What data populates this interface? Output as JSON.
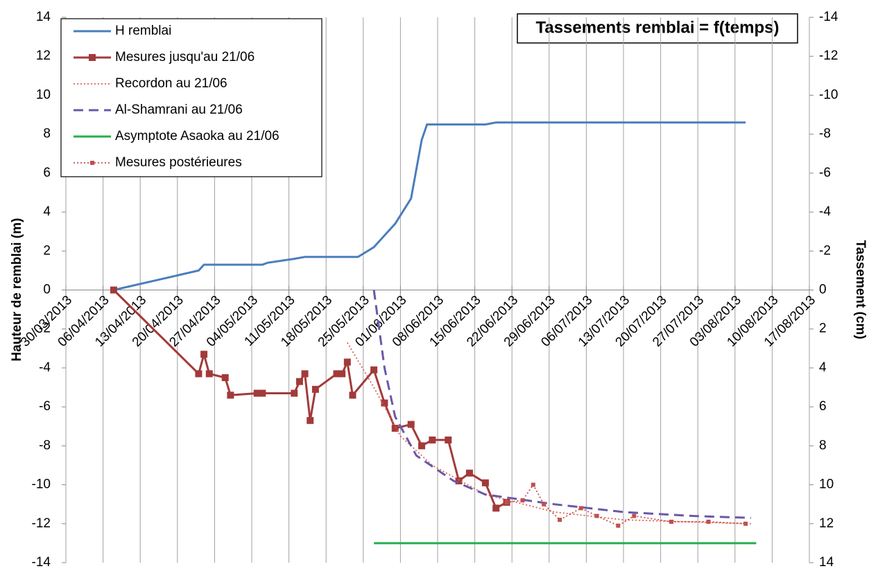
{
  "chart_data": {
    "type": "line",
    "title": "Tassements remblai = f(temps)",
    "ylabel": "Hauteur de remblai (m)",
    "y2label": "Tassement (cm)",
    "xlim": [
      "30/03/2013",
      "17/08/2013"
    ],
    "xticks": [
      "30/03/2013",
      "06/04/2013",
      "13/04/2013",
      "20/04/2013",
      "27/04/2013",
      "04/05/2013",
      "11/05/2013",
      "18/05/2013",
      "25/05/2013",
      "01/06/2013",
      "08/06/2013",
      "15/06/2013",
      "22/06/2013",
      "29/06/2013",
      "06/07/2013",
      "13/07/2013",
      "20/07/2013",
      "27/07/2013",
      "03/08/2013",
      "10/08/2013",
      "17/08/2013"
    ],
    "ylim": [
      -14,
      14
    ],
    "yticks": [
      -14,
      -12,
      -10,
      -8,
      -6,
      -4,
      -2,
      0,
      2,
      4,
      6,
      8,
      10,
      12,
      14
    ],
    "y2lim": [
      14,
      -14
    ],
    "y2ticks": [
      14,
      12,
      10,
      8,
      6,
      4,
      2,
      0,
      -2,
      -4,
      -6,
      -8,
      -10,
      -12,
      -14
    ],
    "grid": "x",
    "legend": "upper left",
    "series": [
      {
        "name": "H remblai",
        "color": "#4a7ebb",
        "style": "solid",
        "axis": "y",
        "x": [
          "08/04/2013",
          "24/04/2013",
          "25/04/2013",
          "06/05/2013",
          "07/05/2013",
          "12/05/2013",
          "14/05/2013",
          "24/05/2013",
          "27/05/2013",
          "29/05/2013",
          "31/05/2013",
          "03/06/2013",
          "05/06/2013",
          "06/06/2013",
          "17/06/2013",
          "19/06/2013",
          "05/08/2013"
        ],
        "values": [
          0,
          1.0,
          1.3,
          1.3,
          1.4,
          1.6,
          1.7,
          1.7,
          2.2,
          2.8,
          3.4,
          4.7,
          7.7,
          8.5,
          8.5,
          8.6,
          8.6
        ]
      },
      {
        "name": "Mesures jusqu'au 21/06",
        "color": "#a33a3a",
        "style": "solid",
        "marker": "square",
        "axis": "y2",
        "x": [
          "08/04/2013",
          "24/04/2013",
          "25/04/2013",
          "26/04/2013",
          "29/04/2013",
          "30/04/2013",
          "05/05/2013",
          "06/05/2013",
          "12/05/2013",
          "13/05/2013",
          "14/05/2013",
          "15/05/2013",
          "16/05/2013",
          "20/05/2013",
          "21/05/2013",
          "22/05/2013",
          "23/05/2013",
          "27/05/2013",
          "29/05/2013",
          "31/05/2013",
          "03/06/2013",
          "05/06/2013",
          "07/06/2013",
          "10/06/2013",
          "12/06/2013",
          "14/06/2013",
          "17/06/2013",
          "19/06/2013",
          "21/06/2013"
        ],
        "values": [
          0,
          4.3,
          3.3,
          4.3,
          4.5,
          5.4,
          5.3,
          5.3,
          5.3,
          4.7,
          4.3,
          6.7,
          5.1,
          4.3,
          4.3,
          3.7,
          5.4,
          4.1,
          5.8,
          7.1,
          6.9,
          8.0,
          7.7,
          7.7,
          9.8,
          9.4,
          9.9,
          11.2,
          10.9
        ]
      },
      {
        "name": "Recordon au 21/06",
        "color": "#e06050",
        "style": "dotted",
        "axis": "y2",
        "x": [
          "22/05/2013",
          "27/05/2013",
          "01/06/2013",
          "07/06/2013",
          "17/06/2013",
          "30/06/2013",
          "13/07/2013",
          "06/08/2013"
        ],
        "values": [
          2.7,
          5.0,
          7.5,
          9.0,
          10.5,
          11.4,
          11.8,
          12.0
        ]
      },
      {
        "name": "Al-Shamrani au 21/06",
        "color": "#6a58a8",
        "style": "dashed",
        "axis": "y2",
        "x": [
          "27/05/2013",
          "29/05/2013",
          "31/05/2013",
          "04/06/2013",
          "11/06/2013",
          "17/06/2013",
          "30/06/2013",
          "13/07/2013",
          "26/07/2013",
          "06/08/2013"
        ],
        "values": [
          0,
          4.0,
          6.5,
          8.5,
          9.8,
          10.5,
          11.0,
          11.4,
          11.6,
          11.7
        ]
      },
      {
        "name": "Asymptote Asaoka au 21/06",
        "color": "#22b04a",
        "style": "solid",
        "axis": "y2",
        "x": [
          "27/05/2013",
          "07/08/2013"
        ],
        "values": [
          13,
          13
        ]
      },
      {
        "name": "Mesures postérieures",
        "color": "#c0504d",
        "style": "dotted",
        "marker": "small-square",
        "axis": "y2",
        "x": [
          "21/06/2013",
          "24/06/2013",
          "26/06/2013",
          "28/06/2013",
          "01/07/2013",
          "05/07/2013",
          "08/07/2013",
          "12/07/2013",
          "15/07/2013",
          "22/07/2013",
          "29/07/2013",
          "05/08/2013"
        ],
        "values": [
          10.9,
          10.8,
          10.0,
          11.0,
          11.8,
          11.2,
          11.6,
          12.1,
          11.6,
          11.9,
          11.9,
          12.0
        ]
      }
    ]
  }
}
